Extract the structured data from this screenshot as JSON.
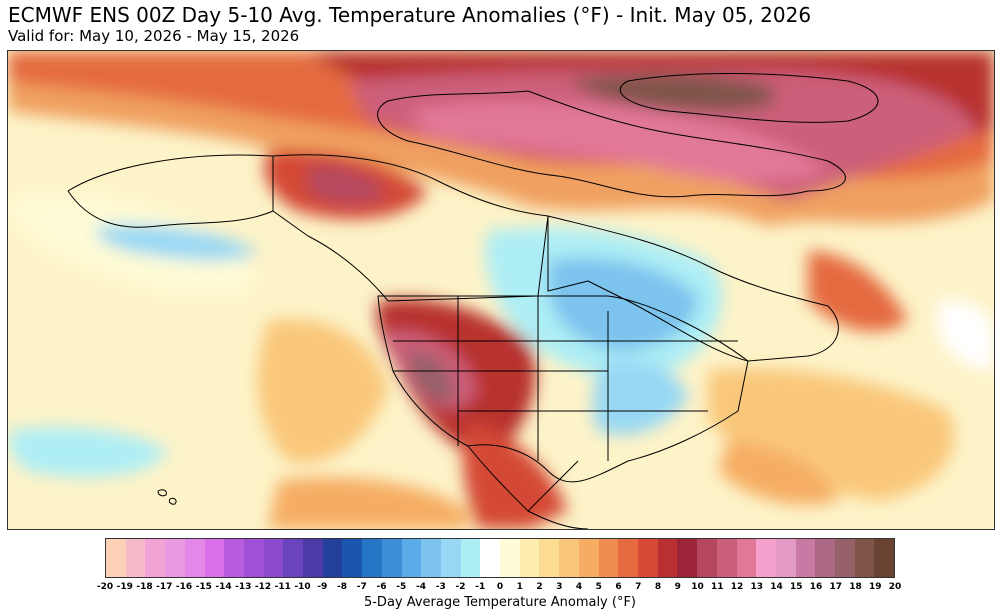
{
  "title": "ECMWF ENS 00Z Day 5-10 Avg. Temperature Anomalies (°F) - Init. May 05, 2026",
  "subtitle": "Valid for: May 10, 2026 - May 15, 2026",
  "colorbar": {
    "label": "5-Day Average Temperature Anomaly (°F)",
    "ticks": [
      "-20",
      "-19",
      "-18",
      "-17",
      "-16",
      "-15",
      "-14",
      "-13",
      "-12",
      "-11",
      "-10",
      "-9",
      "-8",
      "-7",
      "-6",
      "-5",
      "-4",
      "-3",
      "-2",
      "-1",
      "0",
      "1",
      "2",
      "3",
      "4",
      "5",
      "6",
      "7",
      "8",
      "9",
      "10",
      "11",
      "12",
      "13",
      "14",
      "15",
      "16",
      "17",
      "18",
      "19",
      "20"
    ],
    "colors": [
      "#fdd0b8",
      "#f6b9c9",
      "#f0a3d4",
      "#e99ae0",
      "#e388e8",
      "#d96fe9",
      "#b85ce0",
      "#a24fd8",
      "#8a4acb",
      "#6a44bd",
      "#4b3aa8",
      "#23409a",
      "#1a56b0",
      "#2676c6",
      "#3b8fd6",
      "#5aabe8",
      "#7cc3ee",
      "#98d8f4",
      "#aeeef5",
      "#ffffff",
      "#fefbd6",
      "#fdeeb0",
      "#fbdc92",
      "#f9c77a",
      "#f6ad63",
      "#f08d4e",
      "#e56a40",
      "#d44a34",
      "#b8302f",
      "#9c2438",
      "#b5485f",
      "#cc5f79",
      "#e27898",
      "#f5a0cc",
      "#e39bc6",
      "#c97aa4",
      "#ac6985",
      "#966169",
      "#7f5449",
      "#6a4231"
    ]
  }
}
